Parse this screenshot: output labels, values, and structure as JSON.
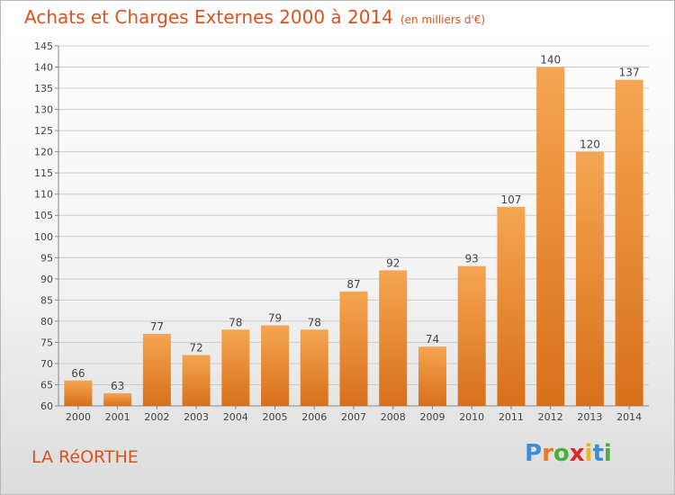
{
  "title": "Achats et Charges Externes 2000 à 2014",
  "unit": "(en milliers d'€)",
  "place": "LA RéORTHE",
  "logo": {
    "text": "Proxiti",
    "letters": [
      "P",
      "r",
      "o",
      "x",
      "i",
      "t",
      "i"
    ],
    "colors": [
      "#3b8ed8",
      "#e8782a",
      "#4caf3c",
      "#d82a2a",
      "#e8b820",
      "#3b8ed8",
      "#4caf3c"
    ]
  },
  "colors": {
    "bar_top": "#f5a552",
    "bar_bottom": "#d8701a",
    "title": "#d8531e",
    "grid": "#cccccc"
  },
  "chart_data": {
    "type": "bar",
    "categories": [
      "2000",
      "2001",
      "2002",
      "2003",
      "2004",
      "2005",
      "2006",
      "2007",
      "2008",
      "2009",
      "2010",
      "2011",
      "2012",
      "2013",
      "2014"
    ],
    "values": [
      66,
      63,
      77,
      72,
      78,
      79,
      78,
      87,
      92,
      74,
      93,
      107,
      140,
      120,
      137
    ],
    "ylim": [
      60,
      145
    ],
    "yticks": [
      60,
      65,
      70,
      75,
      80,
      85,
      90,
      95,
      100,
      105,
      110,
      115,
      120,
      125,
      130,
      135,
      140,
      145
    ],
    "grid": true,
    "title": "Achats et Charges Externes 2000 à 2014",
    "xlabel": "",
    "ylabel": ""
  }
}
